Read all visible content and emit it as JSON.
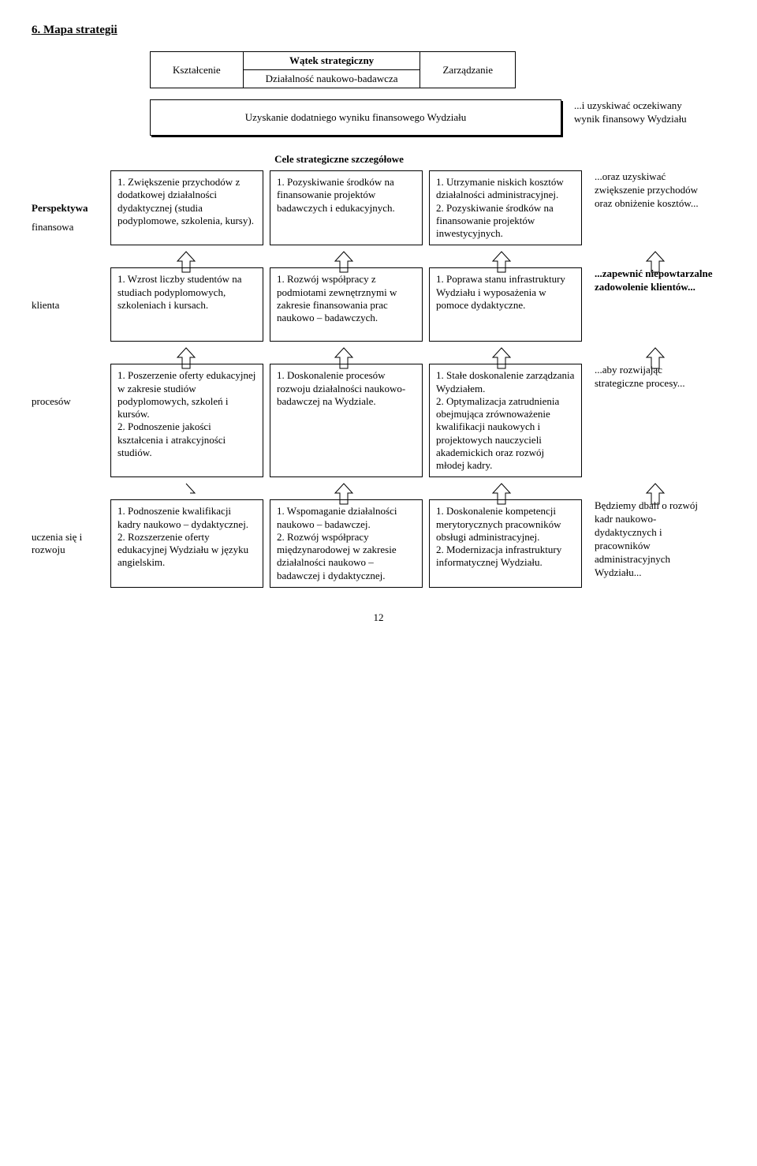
{
  "title": "6. Mapa strategii",
  "thread": {
    "header": "Wątek strategiczny",
    "cols": [
      "Kształcenie",
      "Działalność naukowo-badawcza",
      "Zarządzanie"
    ]
  },
  "goal_bar": "Uzyskanie dodatniego wyniku finansowego Wydziału",
  "cele_heading": "Cele strategiczne szczegółowe",
  "perspective_header": "Perspektywa",
  "side_top": "...i uzyskiwać oczekiwany wynik finansowy Wydziału",
  "rows": [
    {
      "label": "finansowa",
      "cells": [
        "1. Zwiększenie przychodów z dodatkowej działalności dydaktycznej (studia podyplomowe, szkolenia, kursy).",
        "1. Pozyskiwanie środków na finansowanie projektów badawczych i edukacyjnych.",
        "1. Utrzymanie niskich kosztów działalności administracyjnej.\n2. Pozyskiwanie środków na finansowanie projektów inwestycyjnych."
      ],
      "side": "...oraz uzyskiwać zwiększenie przychodów oraz obniżenie kosztów..."
    },
    {
      "label": "klienta",
      "cells": [
        "1. Wzrost liczby studentów na studiach podyplomowych, szkoleniach i kursach.",
        "1. Rozwój współpracy z podmiotami zewnętrznymi w zakresie finansowania prac naukowo – badawczych.",
        "1. Poprawa stanu infrastruktury Wydziału i wyposażenia w pomoce dydaktyczne."
      ],
      "side": "...zapewnić niepowtarzalne zadowolenie klientów..."
    },
    {
      "label": "procesów",
      "cells": [
        "1. Poszerzenie oferty edukacyjnej w zakresie studiów podyplomowych, szkoleń i kursów.\n2. Podnoszenie jakości kształcenia i atrakcyjności studiów.",
        "1. Doskonalenie procesów rozwoju działalności naukowo-badawczej na Wydziale.",
        "1. Stałe doskonalenie zarządzania Wydziałem.\n2. Optymalizacja zatrudnienia obejmująca zrównoważenie kwalifikacji naukowych i projektowych nauczycieli akademickich oraz rozwój młodej kadry."
      ],
      "side": "...aby rozwijając strategiczne procesy..."
    },
    {
      "label": "uczenia się i rozwoju",
      "cells": [
        "1. Podnoszenie kwalifikacji kadry naukowo – dydaktycznej.\n2. Rozszerzenie oferty edukacyjnej Wydziału w języku angielskim.",
        "1. Wspomaganie działalności naukowo – badawczej.\n2. Rozwój współpracy międzynarodowej w zakresie działalności naukowo – badawczej i dydaktycznej.",
        "1. Doskonalenie kompetencji merytorycznych pracowników obsługi administracyjnej.\n2. Modernizacja infrastruktury informatycznej Wydziału."
      ],
      "side": "Będziemy dbali o rozwój kadr naukowo-dydaktycznych i pracowników administracyjnych Wydziału..."
    }
  ],
  "page_number": "12",
  "arrow": {
    "color": "#000000",
    "width": 26,
    "height": 30
  }
}
